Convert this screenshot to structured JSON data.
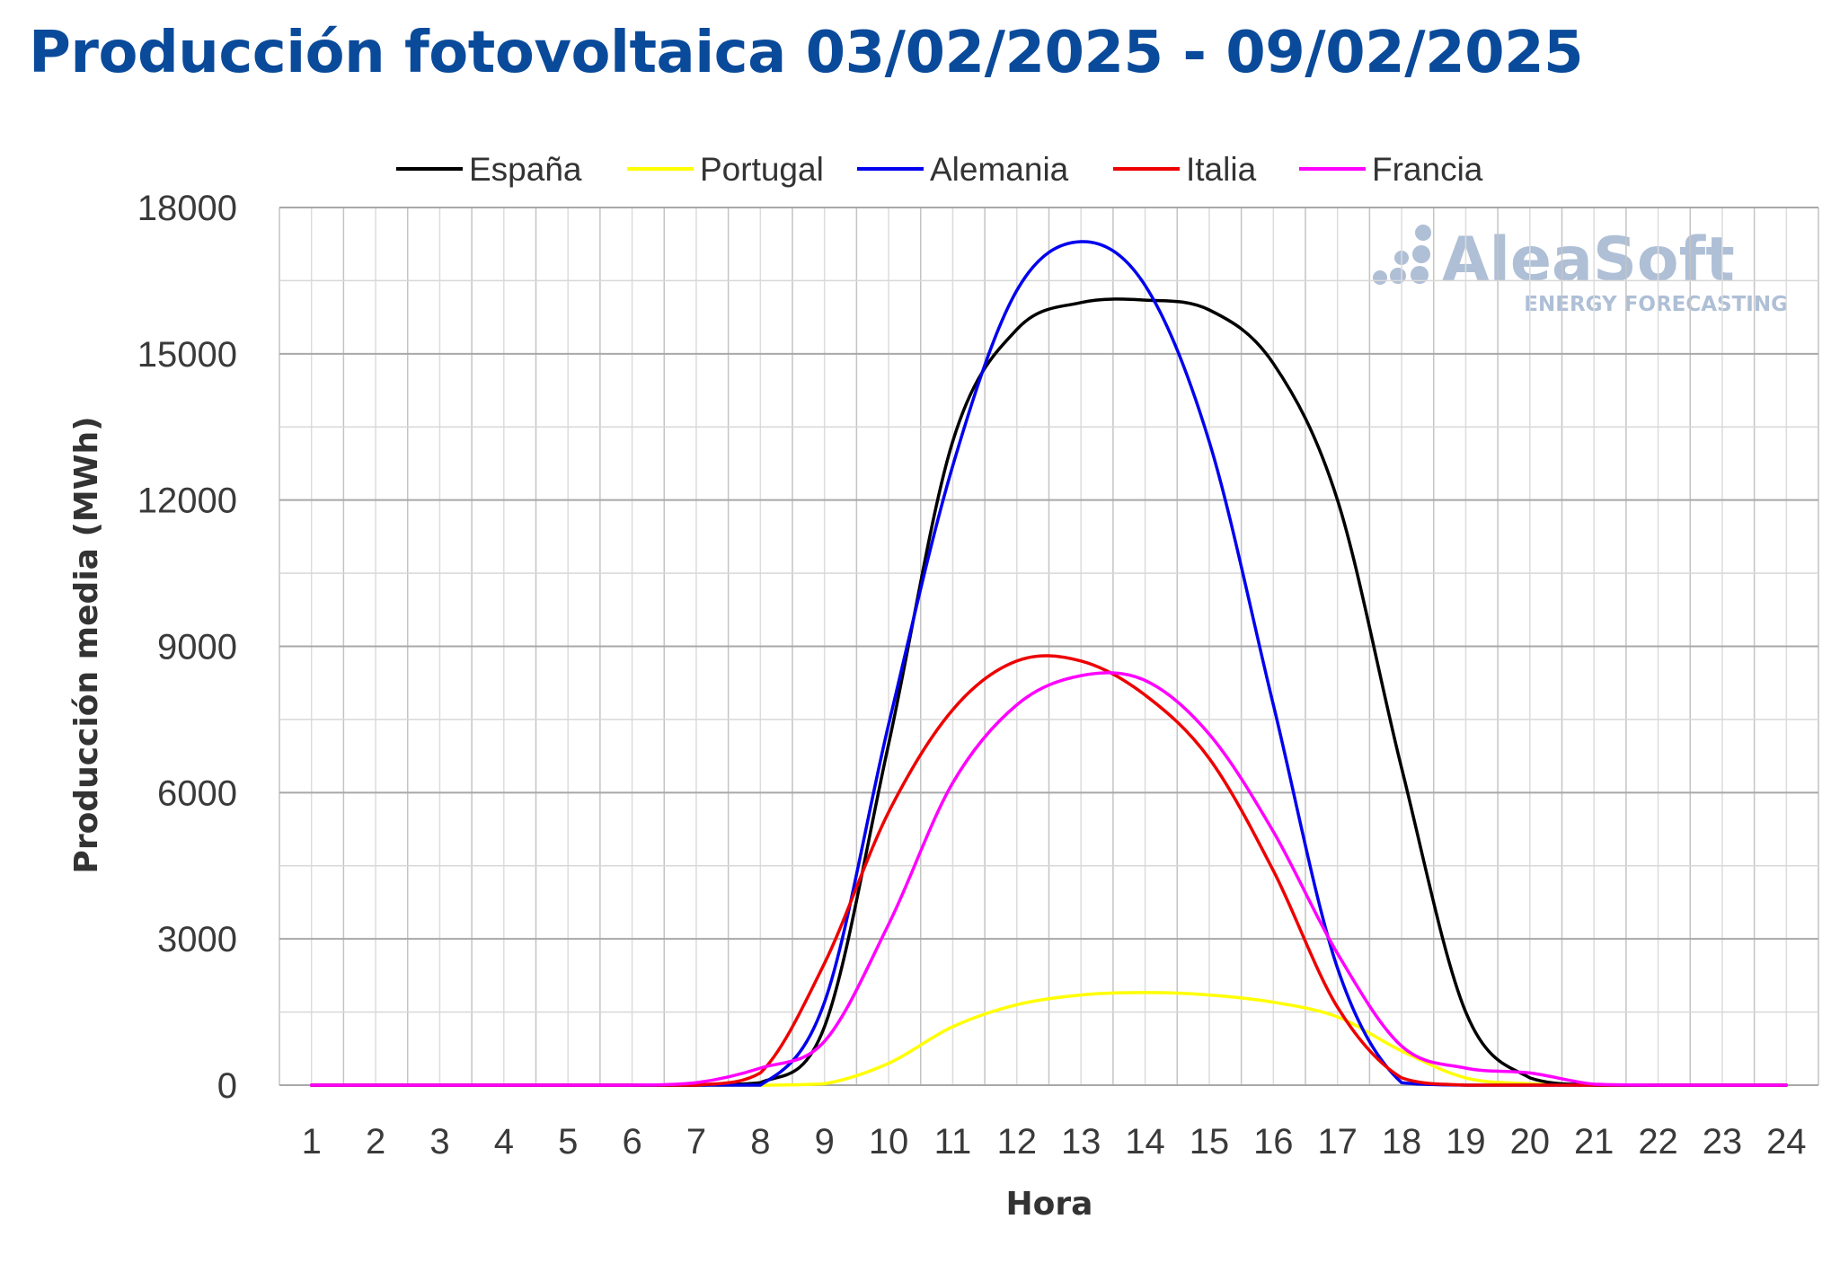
{
  "chart_data": {
    "type": "line",
    "title": "Producción fotovoltaica 03/02/2025 - 09/02/2025",
    "xlabel": "Hora",
    "ylabel": "Producción media (MWh)",
    "x": [
      1,
      2,
      3,
      4,
      5,
      6,
      7,
      8,
      9,
      10,
      11,
      12,
      13,
      14,
      15,
      16,
      17,
      18,
      19,
      20,
      21,
      22,
      23,
      24
    ],
    "ylim": [
      0,
      18000
    ],
    "yticks": [
      0,
      3000,
      6000,
      9000,
      12000,
      15000,
      18000
    ],
    "grid": true,
    "legend_position": "top",
    "series": [
      {
        "name": "España",
        "color": "#000000",
        "values": [
          0,
          0,
          0,
          0,
          0,
          0,
          0,
          50,
          1200,
          7000,
          13200,
          15500,
          16050,
          16100,
          15900,
          14800,
          12000,
          6500,
          1500,
          150,
          0,
          0,
          0,
          0
        ]
      },
      {
        "name": "Portugal",
        "color": "#ffff00",
        "values": [
          0,
          0,
          0,
          0,
          0,
          0,
          0,
          0,
          30,
          450,
          1200,
          1650,
          1850,
          1900,
          1850,
          1700,
          1400,
          700,
          150,
          30,
          0,
          0,
          0,
          0
        ]
      },
      {
        "name": "Alemania",
        "color": "#0000ee",
        "values": [
          0,
          0,
          0,
          0,
          0,
          0,
          0,
          0,
          1700,
          7400,
          12700,
          16300,
          17300,
          16400,
          13200,
          7800,
          2400,
          50,
          0,
          0,
          0,
          0,
          0,
          0
        ]
      },
      {
        "name": "Italia",
        "color": "#ee0000",
        "values": [
          0,
          0,
          0,
          0,
          0,
          0,
          0,
          250,
          2500,
          5600,
          7700,
          8700,
          8700,
          8000,
          6700,
          4400,
          1600,
          150,
          0,
          0,
          0,
          0,
          0,
          0
        ]
      },
      {
        "name": "Francia",
        "color": "#ff00ff",
        "values": [
          0,
          0,
          0,
          0,
          0,
          0,
          50,
          350,
          900,
          3300,
          6200,
          7800,
          8400,
          8300,
          7200,
          5200,
          2700,
          800,
          350,
          250,
          20,
          0,
          0,
          0
        ]
      }
    ]
  },
  "watermark": {
    "brand": "AleaSoft",
    "tagline": "ENERGY FORECASTING"
  }
}
